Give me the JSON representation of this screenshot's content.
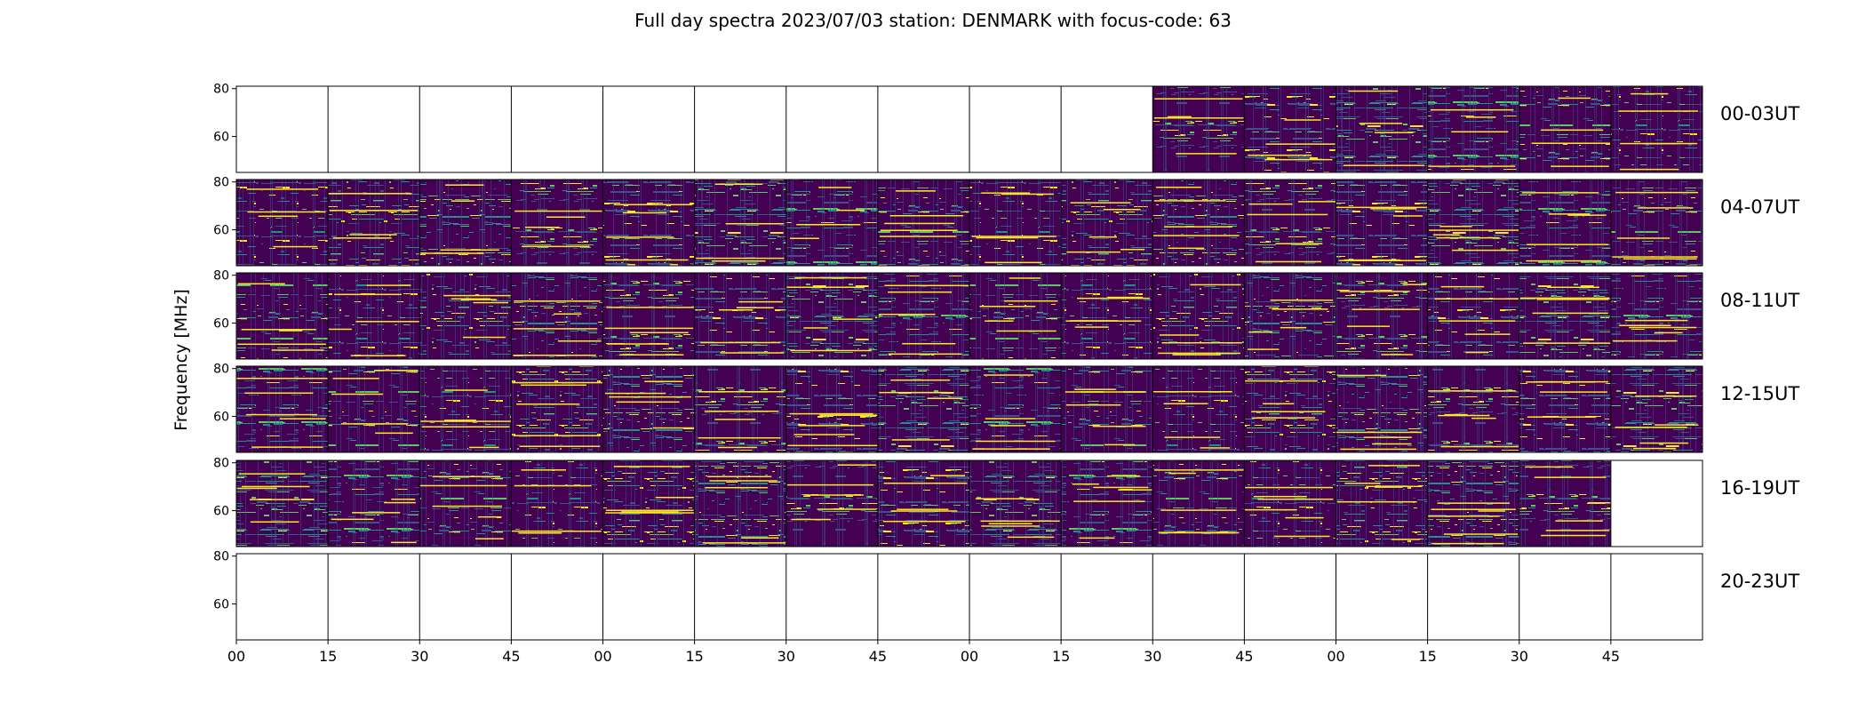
{
  "chart_data": {
    "type": "heatmap",
    "title": "Full day spectra 2023/07/03 station: DENMARK with focus-code: 63",
    "ylabel": "Frequency [MHz]",
    "xlabel": "",
    "ylim": [
      45,
      81
    ],
    "ytick_labels": [
      "80",
      "60"
    ],
    "yticks": [
      80,
      60
    ],
    "x_tick_labels": [
      "00",
      "15",
      "30",
      "45",
      "00",
      "15",
      "30",
      "45",
      "00",
      "15",
      "30",
      "45",
      "00",
      "15",
      "30",
      "45"
    ],
    "colormap": [
      "#440154",
      "#3b528b",
      "#21918c",
      "#5ec962",
      "#fde725"
    ],
    "frame_color": "#000000",
    "rows": [
      {
        "label": "00-03UT",
        "panels": [
          0,
          0,
          0,
          0,
          0,
          0,
          0,
          0,
          0,
          0,
          1,
          1,
          1,
          1,
          1,
          1
        ]
      },
      {
        "label": "04-07UT",
        "panels": [
          1,
          1,
          1,
          1,
          1,
          1,
          1,
          1,
          1,
          1,
          1,
          1,
          1,
          1,
          1,
          1
        ]
      },
      {
        "label": "08-11UT",
        "panels": [
          1,
          1,
          1,
          1,
          1,
          1,
          1,
          1,
          1,
          1,
          1,
          1,
          1,
          1,
          1,
          1
        ]
      },
      {
        "label": "12-15UT",
        "panels": [
          1,
          1,
          1,
          1,
          1,
          1,
          1,
          1,
          1,
          1,
          1,
          1,
          1,
          1,
          1,
          1
        ]
      },
      {
        "label": "16-19UT",
        "panels": [
          1,
          1,
          1,
          1,
          1,
          1,
          1,
          1,
          1,
          1,
          1,
          1,
          1,
          1,
          1,
          0
        ]
      },
      {
        "label": "20-23UT",
        "panels": [
          0,
          0,
          0,
          0,
          0,
          0,
          0,
          0,
          0,
          0,
          0,
          0,
          0,
          0,
          0,
          0
        ]
      }
    ]
  }
}
